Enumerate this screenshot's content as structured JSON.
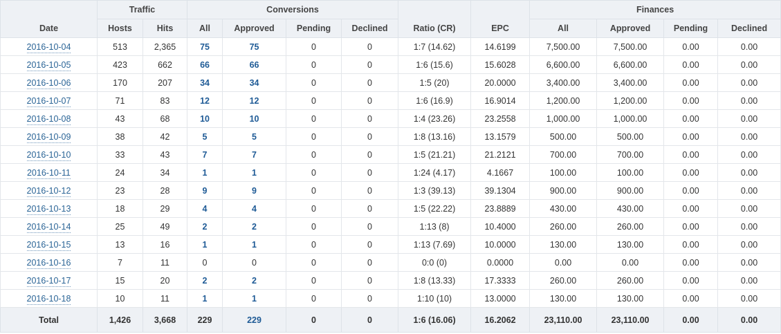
{
  "headers": {
    "group": {
      "traffic": "Traffic",
      "conversions": "Conversions",
      "finances": "Finances"
    },
    "columns": {
      "date": "Date",
      "hosts": "Hosts",
      "hits": "Hits",
      "conv_all": "All",
      "conv_approved": "Approved",
      "conv_pending": "Pending",
      "conv_declined": "Declined",
      "ratio": "Ratio (CR)",
      "epc": "EPC",
      "fin_all": "All",
      "fin_approved": "Approved",
      "fin_pending": "Pending",
      "fin_declined": "Declined"
    }
  },
  "rows": [
    {
      "date": "2016-10-04",
      "hosts": "513",
      "hits": "2,365",
      "conv_all": "75",
      "conv_approved": "75",
      "conv_pending": "0",
      "conv_declined": "0",
      "ratio": "1:7 (14.62)",
      "epc": "14.6199",
      "fin_all": "7,500.00",
      "fin_approved": "7,500.00",
      "fin_pending": "0.00",
      "fin_declined": "0.00"
    },
    {
      "date": "2016-10-05",
      "hosts": "423",
      "hits": "662",
      "conv_all": "66",
      "conv_approved": "66",
      "conv_pending": "0",
      "conv_declined": "0",
      "ratio": "1:6 (15.6)",
      "epc": "15.6028",
      "fin_all": "6,600.00",
      "fin_approved": "6,600.00",
      "fin_pending": "0.00",
      "fin_declined": "0.00"
    },
    {
      "date": "2016-10-06",
      "hosts": "170",
      "hits": "207",
      "conv_all": "34",
      "conv_approved": "34",
      "conv_pending": "0",
      "conv_declined": "0",
      "ratio": "1:5 (20)",
      "epc": "20.0000",
      "fin_all": "3,400.00",
      "fin_approved": "3,400.00",
      "fin_pending": "0.00",
      "fin_declined": "0.00"
    },
    {
      "date": "2016-10-07",
      "hosts": "71",
      "hits": "83",
      "conv_all": "12",
      "conv_approved": "12",
      "conv_pending": "0",
      "conv_declined": "0",
      "ratio": "1:6 (16.9)",
      "epc": "16.9014",
      "fin_all": "1,200.00",
      "fin_approved": "1,200.00",
      "fin_pending": "0.00",
      "fin_declined": "0.00"
    },
    {
      "date": "2016-10-08",
      "hosts": "43",
      "hits": "68",
      "conv_all": "10",
      "conv_approved": "10",
      "conv_pending": "0",
      "conv_declined": "0",
      "ratio": "1:4 (23.26)",
      "epc": "23.2558",
      "fin_all": "1,000.00",
      "fin_approved": "1,000.00",
      "fin_pending": "0.00",
      "fin_declined": "0.00"
    },
    {
      "date": "2016-10-09",
      "hosts": "38",
      "hits": "42",
      "conv_all": "5",
      "conv_approved": "5",
      "conv_pending": "0",
      "conv_declined": "0",
      "ratio": "1:8 (13.16)",
      "epc": "13.1579",
      "fin_all": "500.00",
      "fin_approved": "500.00",
      "fin_pending": "0.00",
      "fin_declined": "0.00"
    },
    {
      "date": "2016-10-10",
      "hosts": "33",
      "hits": "43",
      "conv_all": "7",
      "conv_approved": "7",
      "conv_pending": "0",
      "conv_declined": "0",
      "ratio": "1:5 (21.21)",
      "epc": "21.2121",
      "fin_all": "700.00",
      "fin_approved": "700.00",
      "fin_pending": "0.00",
      "fin_declined": "0.00"
    },
    {
      "date": "2016-10-11",
      "hosts": "24",
      "hits": "34",
      "conv_all": "1",
      "conv_approved": "1",
      "conv_pending": "0",
      "conv_declined": "0",
      "ratio": "1:24 (4.17)",
      "epc": "4.1667",
      "fin_all": "100.00",
      "fin_approved": "100.00",
      "fin_pending": "0.00",
      "fin_declined": "0.00"
    },
    {
      "date": "2016-10-12",
      "hosts": "23",
      "hits": "28",
      "conv_all": "9",
      "conv_approved": "9",
      "conv_pending": "0",
      "conv_declined": "0",
      "ratio": "1:3 (39.13)",
      "epc": "39.1304",
      "fin_all": "900.00",
      "fin_approved": "900.00",
      "fin_pending": "0.00",
      "fin_declined": "0.00"
    },
    {
      "date": "2016-10-13",
      "hosts": "18",
      "hits": "29",
      "conv_all": "4",
      "conv_approved": "4",
      "conv_pending": "0",
      "conv_declined": "0",
      "ratio": "1:5 (22.22)",
      "epc": "23.8889",
      "fin_all": "430.00",
      "fin_approved": "430.00",
      "fin_pending": "0.00",
      "fin_declined": "0.00"
    },
    {
      "date": "2016-10-14",
      "hosts": "25",
      "hits": "49",
      "conv_all": "2",
      "conv_approved": "2",
      "conv_pending": "0",
      "conv_declined": "0",
      "ratio": "1:13 (8)",
      "epc": "10.4000",
      "fin_all": "260.00",
      "fin_approved": "260.00",
      "fin_pending": "0.00",
      "fin_declined": "0.00"
    },
    {
      "date": "2016-10-15",
      "hosts": "13",
      "hits": "16",
      "conv_all": "1",
      "conv_approved": "1",
      "conv_pending": "0",
      "conv_declined": "0",
      "ratio": "1:13 (7.69)",
      "epc": "10.0000",
      "fin_all": "130.00",
      "fin_approved": "130.00",
      "fin_pending": "0.00",
      "fin_declined": "0.00"
    },
    {
      "date": "2016-10-16",
      "hosts": "7",
      "hits": "11",
      "conv_all": "0",
      "conv_approved": "0",
      "conv_pending": "0",
      "conv_declined": "0",
      "ratio": "0:0 (0)",
      "epc": "0.0000",
      "fin_all": "0.00",
      "fin_approved": "0.00",
      "fin_pending": "0.00",
      "fin_declined": "0.00"
    },
    {
      "date": "2016-10-17",
      "hosts": "15",
      "hits": "20",
      "conv_all": "2",
      "conv_approved": "2",
      "conv_pending": "0",
      "conv_declined": "0",
      "ratio": "1:8 (13.33)",
      "epc": "17.3333",
      "fin_all": "260.00",
      "fin_approved": "260.00",
      "fin_pending": "0.00",
      "fin_declined": "0.00"
    },
    {
      "date": "2016-10-18",
      "hosts": "10",
      "hits": "11",
      "conv_all": "1",
      "conv_approved": "1",
      "conv_pending": "0",
      "conv_declined": "0",
      "ratio": "1:10 (10)",
      "epc": "13.0000",
      "fin_all": "130.00",
      "fin_approved": "130.00",
      "fin_pending": "0.00",
      "fin_declined": "0.00"
    }
  ],
  "totals": {
    "label": "Total",
    "hosts": "1,426",
    "hits": "3,668",
    "conv_all": "229",
    "conv_approved": "229",
    "conv_pending": "0",
    "conv_declined": "0",
    "ratio": "1:6 (16.06)",
    "epc": "16.2062",
    "fin_all": "23,110.00",
    "fin_approved": "23,110.00",
    "fin_pending": "0.00",
    "fin_declined": "0.00"
  },
  "colors": {
    "link": "#2a6496",
    "header_bg": "#eef1f5"
  }
}
